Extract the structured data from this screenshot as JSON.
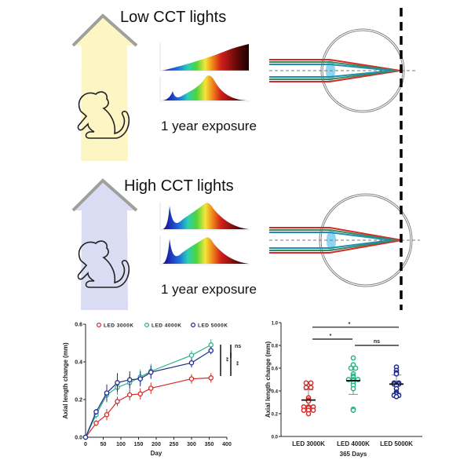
{
  "panels": {
    "low": {
      "title": "Low CCT lights",
      "caption": "1 year exposure"
    },
    "high": {
      "title": "High CCT lights",
      "caption": "1 year exposure"
    }
  },
  "colors": {
    "low_light": "#fdf5c4",
    "high_light": "#dadcf3",
    "led_3000k": "#d42a2a",
    "led_4000k": "#2bb38a",
    "led_5000k": "#1f2a8f"
  },
  "chart_data": [
    {
      "type": "line",
      "xlabel": "Day",
      "ylabel": "Axial length change (mm)",
      "xlim": [
        0,
        400
      ],
      "ylim": [
        0,
        0.6
      ],
      "xticks": [
        "0",
        "50",
        "100",
        "150",
        "200",
        "250",
        "300",
        "350",
        "400"
      ],
      "yticks": [
        "0.0",
        "0.2",
        "0.4",
        "0.6"
      ],
      "legend_position": "top",
      "x": [
        0,
        30,
        60,
        90,
        125,
        155,
        185,
        300,
        355
      ],
      "series": [
        {
          "name": "LED 3000K",
          "values": [
            0,
            0.075,
            0.12,
            0.19,
            0.225,
            0.23,
            0.26,
            0.31,
            0.315
          ],
          "err": [
            0,
            0.015,
            0.03,
            0.025,
            0.03,
            0.03,
            0.03,
            0.025,
            0.025
          ]
        },
        {
          "name": "LED 4000K",
          "values": [
            0,
            0.12,
            0.225,
            0.265,
            0.29,
            0.32,
            0.35,
            0.435,
            0.49
          ],
          "err": [
            0,
            0.02,
            0.04,
            0.04,
            0.05,
            0.04,
            0.04,
            0.025,
            0.03
          ]
        },
        {
          "name": "LED 5000K",
          "values": [
            0,
            0.135,
            0.235,
            0.29,
            0.305,
            0.31,
            0.345,
            0.395,
            0.46
          ],
          "err": [
            0,
            0.015,
            0.045,
            0.05,
            0.045,
            0.04,
            0.035,
            0.025,
            0.02
          ]
        }
      ],
      "significance": [
        {
          "pair": "LED 4000K vs LED 5000K",
          "label": "ns"
        },
        {
          "pair": "LED 3000K vs LED 4000K",
          "label": "**"
        },
        {
          "pair": "LED 3000K vs LED 5000K",
          "label": "**"
        }
      ]
    },
    {
      "type": "scatter",
      "xlabel": "365 Days",
      "ylabel": "Axial length change (mm)",
      "ylim": [
        0,
        1.0
      ],
      "yticks": [
        "0.0",
        "0.2",
        "0.4",
        "0.6",
        "0.8",
        "1.0"
      ],
      "categories": [
        "LED 3000K",
        "LED 4000K",
        "LED 5000K"
      ],
      "series": [
        {
          "category": "LED 3000K",
          "values": [
            0.47,
            0.47,
            0.43,
            0.43,
            0.34,
            0.32,
            0.31,
            0.26,
            0.26,
            0.26,
            0.25,
            0.23,
            0.23,
            0.23,
            0.2
          ],
          "mean": 0.32,
          "sd": 0.09
        },
        {
          "category": "LED 4000K",
          "values": [
            0.69,
            0.63,
            0.6,
            0.6,
            0.55,
            0.53,
            0.52,
            0.5,
            0.5,
            0.5,
            0.49,
            0.47,
            0.45,
            0.42,
            0.24,
            0.23
          ],
          "mean": 0.49,
          "sd": 0.12
        },
        {
          "category": "LED 5000K",
          "values": [
            0.61,
            0.58,
            0.56,
            0.55,
            0.47,
            0.47,
            0.46,
            0.46,
            0.45,
            0.42,
            0.39,
            0.38,
            0.37,
            0.36,
            0.36,
            0.35
          ],
          "mean": 0.46,
          "sd": 0.08
        }
      ],
      "significance": [
        {
          "pair": "LED 3000K vs LED 5000K",
          "label": "*"
        },
        {
          "pair": "LED 3000K vs LED 4000K",
          "label": "*"
        },
        {
          "pair": "LED 4000K vs LED 5000K",
          "label": "ns"
        }
      ]
    }
  ]
}
